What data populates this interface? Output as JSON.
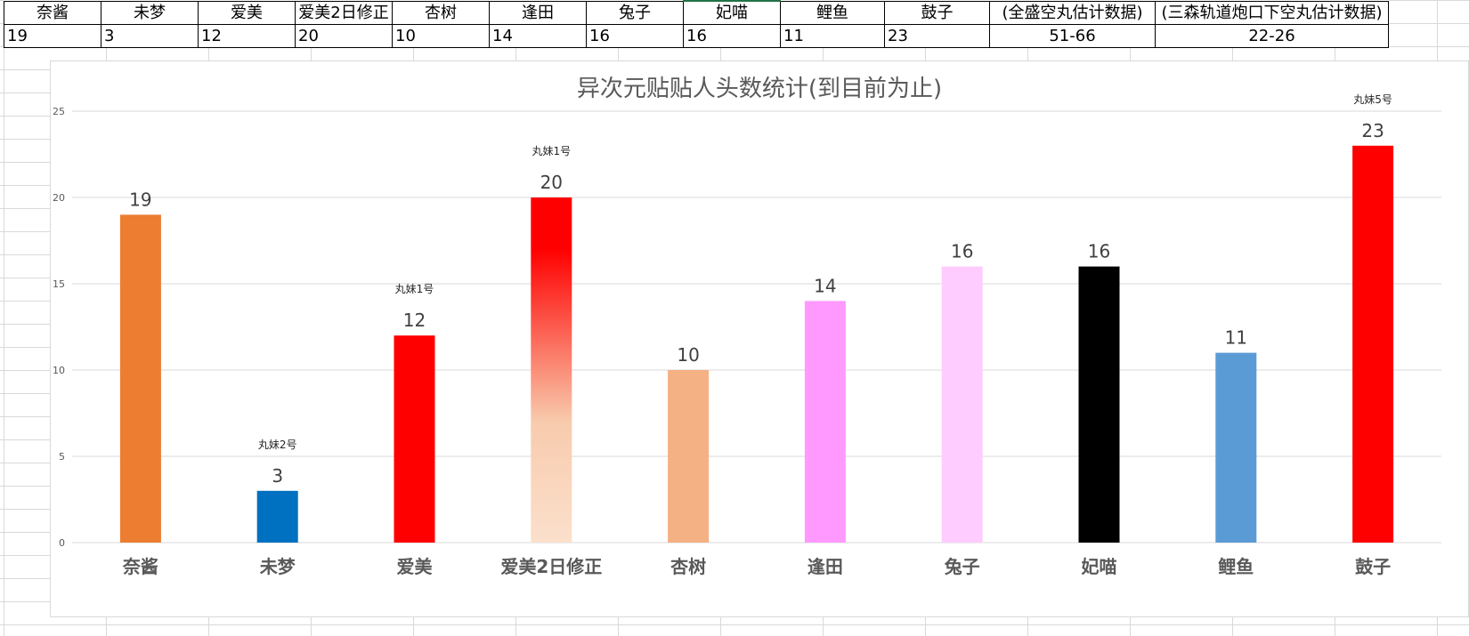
{
  "table": {
    "headers": [
      "奈酱",
      "未梦",
      "爱美",
      "爱美2日修正",
      "杏树",
      "逢田",
      "兔子",
      "妃喵",
      "鲤鱼",
      "鼓子",
      "(全盛空丸估计数据)",
      "(三森轨道炮口下空丸估计数据)"
    ],
    "values": [
      "19",
      "3",
      "12",
      "20",
      "10",
      "14",
      "16",
      "16",
      "11",
      "23",
      "51-66",
      "22-26"
    ]
  },
  "chart_data": {
    "type": "bar",
    "title": "异次元贴贴人头数统计(到目前为止)",
    "categories": [
      "奈酱",
      "未梦",
      "爱美",
      "爱美2日修正",
      "杏树",
      "逢田",
      "兔子",
      "妃喵",
      "鲤鱼",
      "鼓子"
    ],
    "values": [
      19,
      3,
      12,
      20,
      10,
      14,
      16,
      16,
      11,
      23
    ],
    "bar_colors": [
      "#ed7d31",
      "#0070c0",
      "#ff0000",
      "gradient-red-to-peach",
      "#f4b183",
      "#ff99ff",
      "#ffccff",
      "#000000",
      "#5b9bd5",
      "#ff0000"
    ],
    "gradient_colors": [
      "#ff0000",
      "#f8cbad",
      "#fbe0cc"
    ],
    "annotations": [
      {
        "category": "未梦",
        "text": "丸妹2号"
      },
      {
        "category": "爱美",
        "text": "丸妹1号"
      },
      {
        "category": "爱美2日修正",
        "text": "丸妹1号"
      },
      {
        "category": "鼓子",
        "text": "丸妹5号"
      }
    ],
    "ylim": [
      0,
      25
    ],
    "yticks": [
      0,
      5,
      10,
      15,
      20,
      25
    ],
    "grid": true,
    "legend": "none"
  }
}
